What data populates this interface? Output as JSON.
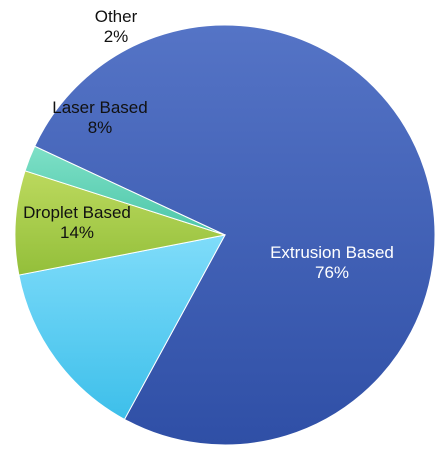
{
  "chart_data": {
    "type": "pie",
    "title": "",
    "slices": [
      {
        "name": "Extrusion Based",
        "value": 76,
        "percent_label": "76%",
        "color": "#3f60b4",
        "label_color": "#ffffff"
      },
      {
        "name": "Droplet Based",
        "value": 14,
        "percent_label": "14%",
        "color": "#4fcaf0",
        "label_color": "#111111"
      },
      {
        "name": "Laser Based",
        "value": 8,
        "percent_label": "8%",
        "color": "#a6cc4a",
        "label_color": "#111111"
      },
      {
        "name": "Other",
        "value": 2,
        "percent_label": "2%",
        "color": "#5fd1b5",
        "label_color": "#111111"
      }
    ]
  }
}
